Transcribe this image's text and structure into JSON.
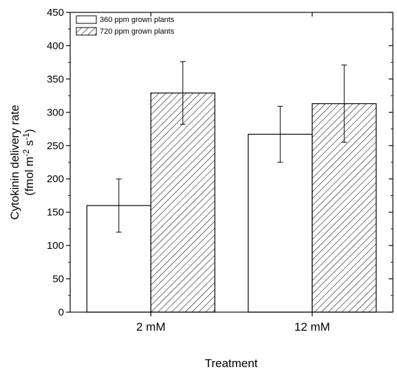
{
  "chart_data": {
    "type": "bar",
    "xlabel": "Treatment",
    "ylabel_line1": "Cytokinin delivery rate",
    "ylabel_line2": {
      "prefix": "(fmol m",
      "sup1": "-2",
      "mid": " s",
      "sup2": "-1",
      "suffix": ")"
    },
    "categories": [
      "2 mM",
      "12 mM"
    ],
    "series": [
      {
        "name": "360 ppm grown plants",
        "fill": "open",
        "values": [
          160,
          267
        ],
        "errors": [
          40,
          42
        ]
      },
      {
        "name": "720 ppm grown plants",
        "fill": "hatched",
        "values": [
          329,
          313
        ],
        "errors": [
          47,
          58
        ]
      }
    ],
    "ylim": [
      0,
      450
    ],
    "ytick_step": 50,
    "legend_position": "top-left",
    "grid": false,
    "colors": {
      "axis": "#000000",
      "bar_fill": "#ffffff",
      "hatch": "#000000"
    }
  }
}
